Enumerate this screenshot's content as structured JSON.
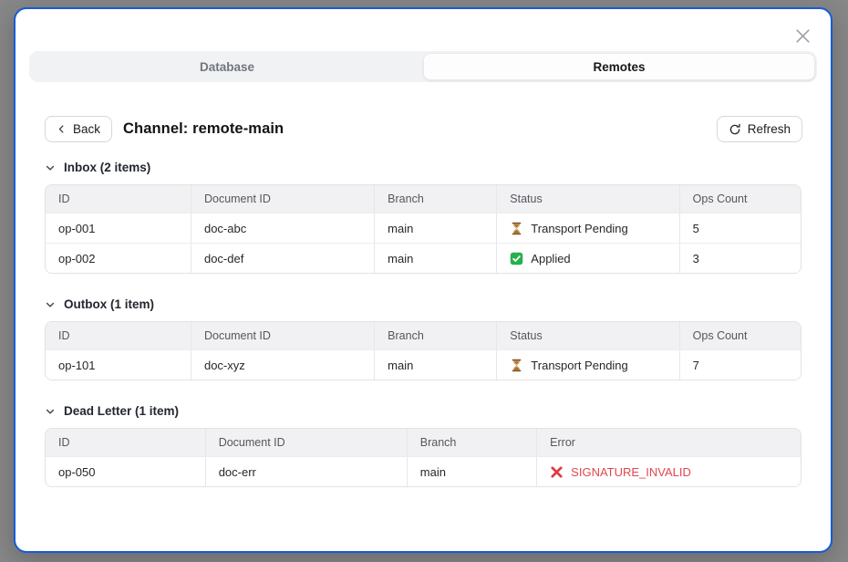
{
  "colors": {
    "accent_border": "#135cd9",
    "backdrop": "#878787",
    "error": "#e0474e",
    "success_green": "#27b04b",
    "pending_brown": "#b06f28"
  },
  "tabs": [
    {
      "label": "Database",
      "active": false
    },
    {
      "label": "Remotes",
      "active": true
    }
  ],
  "header": {
    "back_label": "Back",
    "title": "Channel: remote-main",
    "refresh_label": "Refresh"
  },
  "sections": [
    {
      "title": "Inbox (2 items)",
      "columns": [
        "ID",
        "Document ID",
        "Branch",
        "Status",
        "Ops Count"
      ],
      "col_widths": [
        "19.2%",
        "24.3%",
        "16.2%",
        "24.2%",
        "16.1%"
      ],
      "rows": [
        [
          "op-001",
          "doc-abc",
          "main",
          {
            "icon": "hourglass-icon",
            "text": "Transport Pending"
          },
          "5"
        ],
        [
          "op-002",
          "doc-def",
          "main",
          {
            "icon": "check-icon",
            "text": "Applied"
          },
          "3"
        ]
      ]
    },
    {
      "title": "Outbox (1 item)",
      "columns": [
        "ID",
        "Document ID",
        "Branch",
        "Status",
        "Ops Count"
      ],
      "col_widths": [
        "19.2%",
        "24.3%",
        "16.2%",
        "24.2%",
        "16.1%"
      ],
      "rows": [
        [
          "op-101",
          "doc-xyz",
          "main",
          {
            "icon": "hourglass-icon",
            "text": "Transport Pending"
          },
          "7"
        ]
      ]
    },
    {
      "title": "Dead Letter (1 item)",
      "columns": [
        "ID",
        "Document ID",
        "Branch",
        "Error"
      ],
      "col_widths": [
        "21.1%",
        "26.7%",
        "17.2%",
        "35%"
      ],
      "rows": [
        [
          "op-050",
          "doc-err",
          "main",
          {
            "icon": "x-icon",
            "text": "SIGNATURE_INVALID",
            "style": "error"
          }
        ]
      ]
    }
  ]
}
